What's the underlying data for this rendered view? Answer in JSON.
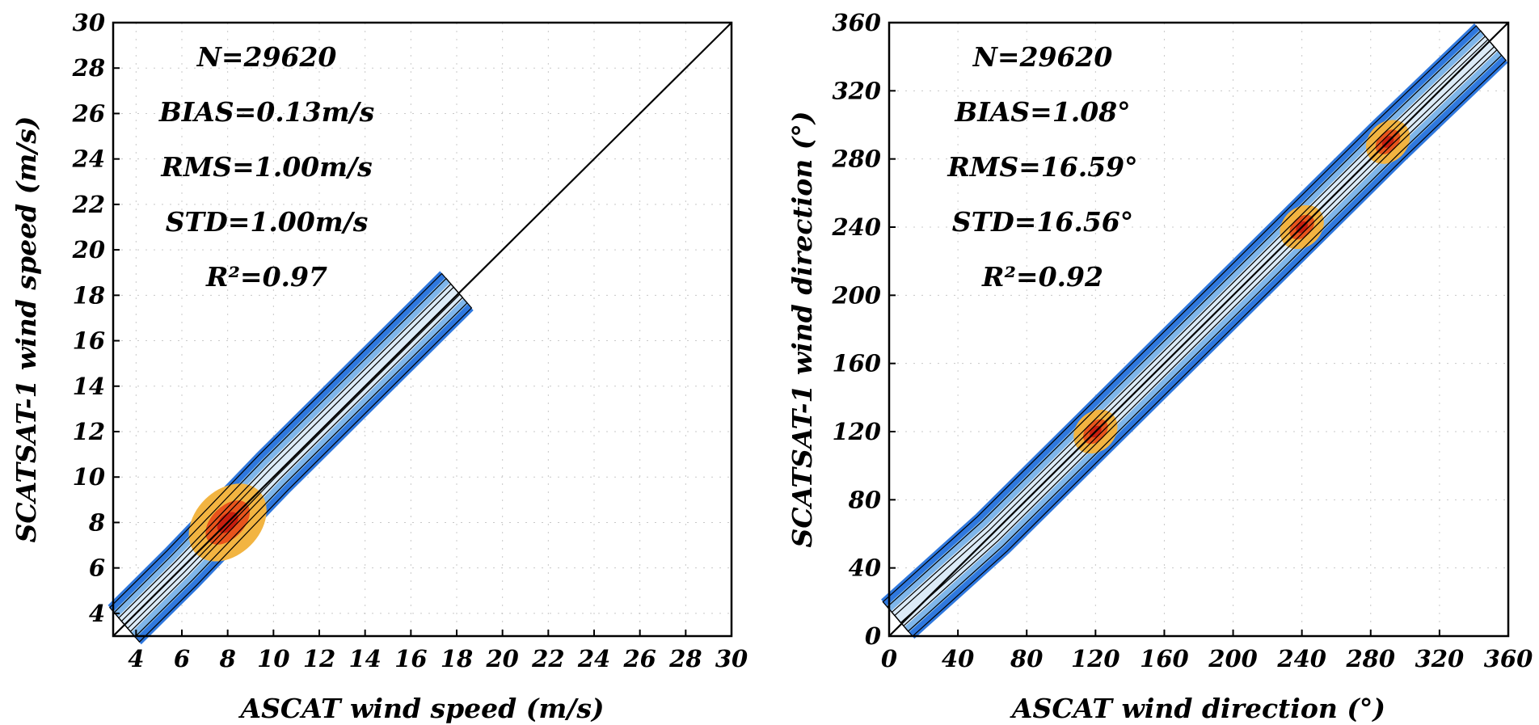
{
  "chart_data": [
    {
      "type": "scatter",
      "subtype": "density-contour",
      "title": "",
      "xlabel": "ASCAT wind speed (m/s)",
      "ylabel": "SCATSAT-1 wind speed (m/s)",
      "xlim": [
        3,
        30
      ],
      "ylim": [
        3,
        30
      ],
      "xticks": [
        4,
        6,
        8,
        10,
        12,
        14,
        16,
        18,
        20,
        22,
        24,
        26,
        28,
        30
      ],
      "yticks": [
        4,
        6,
        8,
        10,
        12,
        14,
        16,
        18,
        20,
        22,
        24,
        26,
        28,
        30
      ],
      "grid": true,
      "reference_line": "1:1",
      "statistics": [
        "N=29620",
        "BIAS=0.13m/s",
        "RMS=1.00m/s",
        "STD=1.00m/s",
        "R²=0.97"
      ],
      "density_core": [
        {
          "x": 3.5,
          "y": 3.5
        },
        {
          "x": 6,
          "y": 6
        },
        {
          "x": 8,
          "y": 8.1
        },
        {
          "x": 10,
          "y": 10.2
        },
        {
          "x": 12,
          "y": 12.2
        },
        {
          "x": 14,
          "y": 14.2
        },
        {
          "x": 16,
          "y": 16.2
        },
        {
          "x": 18,
          "y": 18.2
        }
      ],
      "density_peak": {
        "x": 8,
        "y": 8
      }
    },
    {
      "type": "scatter",
      "subtype": "density-contour",
      "title": "",
      "xlabel": "ASCAT wind direction (°)",
      "ylabel": "SCATSAT-1 wind direction (°)",
      "xlim": [
        0,
        360
      ],
      "ylim": [
        0,
        360
      ],
      "xticks": [
        0,
        40,
        80,
        120,
        160,
        200,
        240,
        280,
        320,
        360
      ],
      "yticks": [
        0,
        40,
        80,
        120,
        160,
        200,
        240,
        280,
        320,
        360
      ],
      "grid": true,
      "reference_line": "1:1",
      "statistics": [
        "N=29620",
        "BIAS=1.08°",
        "RMS=16.59°",
        "STD=16.56°",
        "R²=0.92"
      ],
      "density_core": [
        {
          "x": 5,
          "y": 10
        },
        {
          "x": 60,
          "y": 60
        },
        {
          "x": 120,
          "y": 120
        },
        {
          "x": 170,
          "y": 170
        },
        {
          "x": 200,
          "y": 200
        },
        {
          "x": 240,
          "y": 240
        },
        {
          "x": 290,
          "y": 290
        },
        {
          "x": 350,
          "y": 348
        }
      ],
      "density_peaks": [
        {
          "x": 120,
          "y": 120
        },
        {
          "x": 240,
          "y": 240
        },
        {
          "x": 290,
          "y": 290
        }
      ]
    }
  ],
  "colors": {
    "outer": "#2f78de",
    "mid": "#7fb6ea",
    "light": "#dcebf7",
    "warm": "#f2b441",
    "hot": "#e8541c",
    "core": "#c81e0e"
  }
}
